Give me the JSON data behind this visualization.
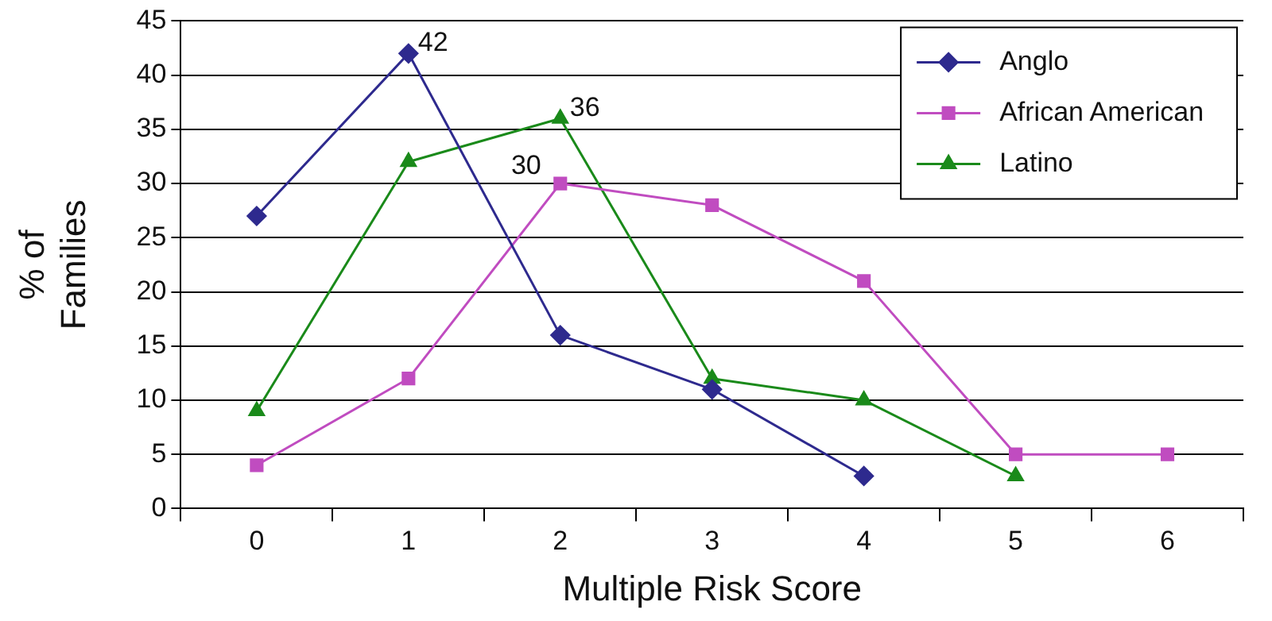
{
  "chart_data": {
    "type": "line",
    "xlabel": "Multiple Risk Score",
    "ylabel": "% of Families",
    "categories": [
      "0",
      "1",
      "2",
      "3",
      "4",
      "5",
      "6"
    ],
    "series": [
      {
        "name": "Anglo",
        "color": "#2e2a8e",
        "marker": "diamond",
        "values": [
          27,
          42,
          16,
          11,
          3,
          null,
          null
        ]
      },
      {
        "name": "African American",
        "color": "#c04cc0",
        "marker": "square",
        "values": [
          4,
          12,
          30,
          28,
          21,
          5,
          5
        ]
      },
      {
        "name": "Latino",
        "color": "#1a8a1a",
        "marker": "triangle",
        "values": [
          9,
          32,
          36,
          12,
          10,
          3,
          null
        ]
      }
    ],
    "ylim": [
      0,
      45
    ],
    "yticks": [
      0,
      5,
      10,
      15,
      20,
      25,
      30,
      35,
      40,
      45
    ],
    "grid": "y",
    "legend": "top right",
    "line_style": "solid",
    "annotations": [
      {
        "text": "42",
        "x": "1",
        "y": 42
      },
      {
        "text": "36",
        "x": "2",
        "y": 36
      },
      {
        "text": "30",
        "x": "2",
        "y": 30
      }
    ]
  }
}
